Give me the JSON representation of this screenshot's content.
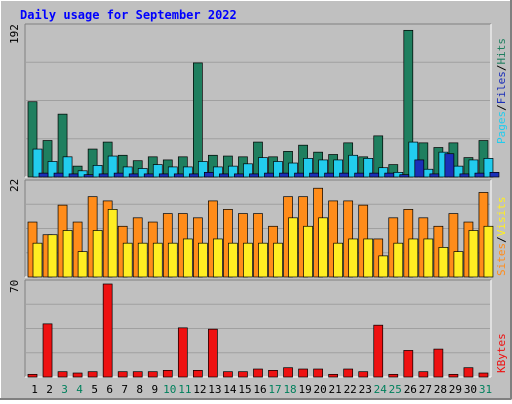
{
  "chart_data": [
    {
      "type": "bar",
      "title": "Daily usage for September 2022",
      "categories": [
        "1",
        "2",
        "3",
        "4",
        "5",
        "6",
        "7",
        "8",
        "9",
        "10",
        "11",
        "12",
        "13",
        "14",
        "15",
        "16",
        "17",
        "18",
        "19",
        "20",
        "21",
        "22",
        "23",
        "24",
        "25",
        "26",
        "27",
        "28",
        "29",
        "30",
        "31"
      ],
      "weekend_categories": [
        "3",
        "4",
        "10",
        "11",
        "17",
        "18",
        "24",
        "25",
        "31"
      ],
      "ylabel_parts": [
        "Pages",
        "Files",
        "Hits"
      ],
      "ylabel_separator": "/",
      "ymax_label": "192",
      "ylim": [
        0,
        192
      ],
      "series": [
        {
          "name": "Hits",
          "color": "#1f7f5f",
          "values": [
            97,
            47,
            81,
            14,
            36,
            45,
            28,
            21,
            26,
            22,
            26,
            147,
            28,
            27,
            26,
            45,
            26,
            33,
            41,
            32,
            29,
            44,
            26,
            53,
            16,
            189,
            44,
            38,
            44,
            25,
            47
          ]
        },
        {
          "name": "Files",
          "color": "#22ccee",
          "values": [
            36,
            20,
            26,
            8,
            15,
            27,
            13,
            11,
            16,
            13,
            13,
            20,
            13,
            14,
            17,
            25,
            20,
            18,
            24,
            22,
            22,
            28,
            24,
            12,
            6,
            45,
            10,
            32,
            14,
            22,
            24
          ]
        },
        {
          "name": "Pages",
          "color": "#1b2fb8",
          "values": [
            5,
            5,
            4,
            3,
            4,
            5,
            4,
            4,
            4,
            4,
            4,
            6,
            4,
            4,
            4,
            5,
            5,
            5,
            5,
            5,
            5,
            5,
            5,
            5,
            3,
            22,
            4,
            30,
            4,
            5,
            6
          ]
        }
      ]
    },
    {
      "type": "bar",
      "ylabel_parts": [
        "Sites",
        "Visits"
      ],
      "ylabel_separator": "/",
      "ymax_label": "22",
      "ylim": [
        0,
        22
      ],
      "series": [
        {
          "name": "Visits",
          "color": "#ff8c1a",
          "values": [
            13,
            10,
            17,
            13,
            19,
            18,
            12,
            14,
            13,
            15,
            15,
            14,
            18,
            16,
            15,
            15,
            12,
            19,
            19,
            21,
            18,
            18,
            17,
            9,
            14,
            16,
            14,
            12,
            15,
            13,
            20
          ]
        },
        {
          "name": "Sites",
          "color": "#ffee22",
          "values": [
            8,
            10,
            11,
            6,
            11,
            16,
            8,
            8,
            8,
            8,
            9,
            8,
            9,
            8,
            8,
            8,
            8,
            14,
            12,
            14,
            8,
            9,
            9,
            5,
            8,
            9,
            9,
            7,
            6,
            11,
            12
          ]
        }
      ]
    },
    {
      "type": "bar",
      "ylabel_parts": [
        "KBytes"
      ],
      "ylabel_separator": "",
      "ymax_label": "70",
      "ylim": [
        0,
        70
      ],
      "series": [
        {
          "name": "KBytes",
          "color": "#ee1111",
          "values": [
            2,
            40,
            4,
            3,
            4,
            70,
            4,
            4,
            4,
            5,
            37,
            5,
            36,
            4,
            4,
            6,
            5,
            7,
            6,
            6,
            2,
            6,
            4,
            39,
            2,
            20,
            4,
            21,
            2,
            7,
            3
          ]
        }
      ]
    }
  ],
  "colors": {
    "title": "#0000ff",
    "background": "#c0c0c0",
    "weekday_day_label": "#000000",
    "weekend_day_label": "#00805c"
  }
}
